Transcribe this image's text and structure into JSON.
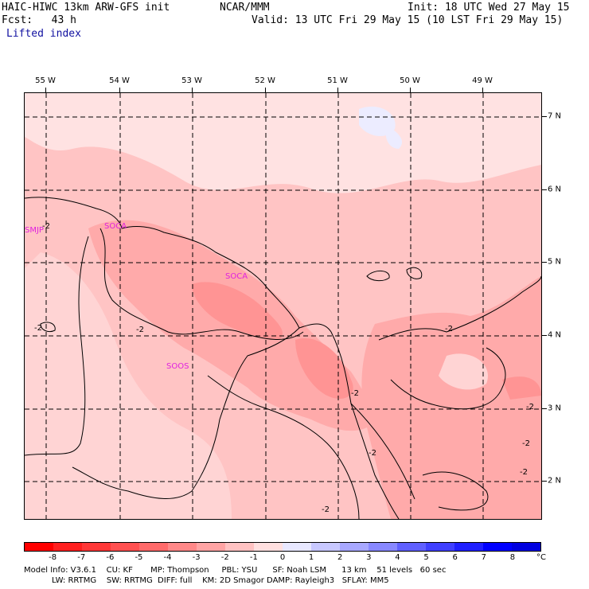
{
  "header": {
    "model": "HAIC-HIWC 13km ARW-GFS init",
    "org": "NCAR/MMM",
    "init": "Init: 18 UTC Wed 27 May 15",
    "fcst": "Fcst:   43 h",
    "valid": "Valid: 13 UTC Fri 29 May 15 (10 LST Fri 29 May 15)",
    "field": "Lifted index"
  },
  "lon_labels": [
    "55 W",
    "54 W",
    "53 W",
    "52 W",
    "51 W",
    "50 W",
    "49 W"
  ],
  "lat_labels": [
    "7 N",
    "6 N",
    "5 N",
    "4 N",
    "3 N",
    "2 N"
  ],
  "stations": [
    "SMJP",
    "SOCA",
    "SOCA",
    "SOOS"
  ],
  "contour_labels": [
    "-2",
    "-2",
    "-2",
    "-2",
    "-2",
    "-2",
    "-2",
    "-2",
    "-2",
    "-2"
  ],
  "colorbar": {
    "labels": [
      "-8",
      "-7",
      "-6",
      "-5",
      "-4",
      "-3",
      "-2",
      "-1",
      "0",
      "1",
      "2",
      "3",
      "4",
      "5",
      "6",
      "7",
      "8"
    ],
    "unit": "°C",
    "colors": [
      "#ff0000",
      "#ff2020",
      "#ff3838",
      "#ff5050",
      "#ff6a6a",
      "#ff8888",
      "#ffa4a4",
      "#ffc2c2",
      "#ffe0e0",
      "#e8e8ff",
      "#c8c8ff",
      "#a8a8ff",
      "#8888ff",
      "#6060ff",
      "#4040ff",
      "#2020ff",
      "#0000ff",
      "#0000e0"
    ]
  },
  "footer": {
    "line1": "Model Info: V3.6.1    CU: KF       MP: Thompson     PBL: YSU      SF: Noah LSM      13 km    51 levels   60 sec",
    "line2": "           LW: RRTMG    SW: RRTMG  DIFF: full    KM: 2D Smagor DAMP: Rayleigh3   SFLAY: MM5"
  }
}
